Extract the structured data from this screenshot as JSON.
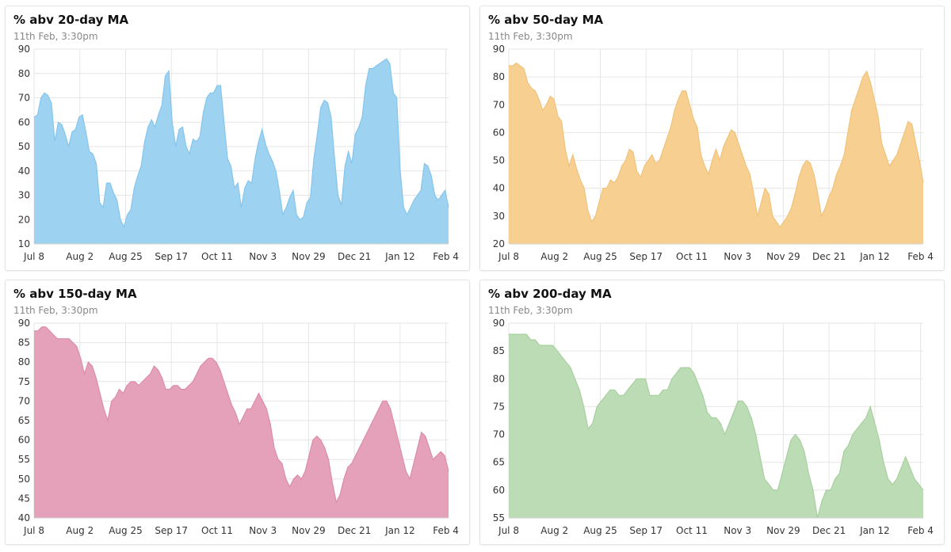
{
  "chart_data": [
    {
      "type": "area",
      "title": "% abv 20-day MA",
      "subtitle": "11th Feb, 3:30pm",
      "color": "#9dd2f1",
      "line_color": "#86c5ec",
      "ylim": [
        10,
        90
      ],
      "yticks": [
        10,
        20,
        30,
        40,
        50,
        60,
        70,
        80,
        90
      ],
      "xticks": [
        "Jul 8",
        "Aug 2",
        "Aug 25",
        "Sep 17",
        "Oct 11",
        "Nov 3",
        "Nov 29",
        "Dec 21",
        "Jan 12",
        "Feb 4"
      ],
      "x_range": [
        0,
        154
      ],
      "values": [
        62,
        63,
        70,
        72,
        71,
        68,
        52,
        60,
        59,
        55,
        50,
        56,
        57,
        62,
        63,
        56,
        48,
        47,
        43,
        27,
        25,
        35,
        35,
        31,
        28,
        20,
        17,
        22,
        24,
        33,
        38,
        42,
        52,
        58,
        61,
        58,
        63,
        67,
        79,
        81,
        60,
        50,
        57,
        58,
        50,
        47,
        53,
        52,
        54,
        64,
        70,
        72,
        72,
        75,
        75,
        60,
        45,
        42,
        33,
        35,
        25,
        33,
        36,
        35,
        45,
        52,
        57,
        51,
        47,
        44,
        40,
        32,
        22,
        25,
        29,
        32,
        22,
        20,
        21,
        27,
        29,
        45,
        55,
        66,
        69,
        68,
        62,
        45,
        30,
        26,
        42,
        48,
        43,
        55,
        58,
        62,
        75,
        82,
        82,
        83,
        84,
        85,
        86,
        84,
        72,
        70,
        40,
        25,
        22,
        25,
        28,
        30,
        32,
        43,
        42,
        38,
        30,
        28,
        30,
        32,
        25
      ]
    },
    {
      "type": "area",
      "title": "% abv 50-day MA",
      "subtitle": "11th Feb, 3:30pm",
      "color": "#f7d091",
      "line_color": "#f0c27a",
      "ylim": [
        20,
        90
      ],
      "yticks": [
        20,
        30,
        40,
        50,
        60,
        70,
        80,
        90
      ],
      "xticks": [
        "Jul 8",
        "Aug 2",
        "Aug 25",
        "Sep 17",
        "Oct 11",
        "Nov 3",
        "Nov 29",
        "Dec 21",
        "Jan 12",
        "Feb 4"
      ],
      "x_range": [
        0,
        154
      ],
      "values": [
        84,
        84,
        85,
        84,
        83,
        78,
        76,
        75,
        72,
        68,
        70,
        73,
        72,
        66,
        64,
        54,
        48,
        52,
        47,
        43,
        40,
        32,
        28,
        30,
        35,
        40,
        40,
        43,
        42,
        44,
        48,
        50,
        54,
        53,
        46,
        44,
        48,
        50,
        52,
        49,
        50,
        54,
        58,
        62,
        68,
        72,
        75,
        75,
        70,
        65,
        62,
        52,
        48,
        45,
        50,
        54,
        50,
        55,
        58,
        61,
        60,
        56,
        52,
        48,
        45,
        38,
        30,
        35,
        40,
        38,
        30,
        28,
        26,
        28,
        30,
        33,
        38,
        44,
        48,
        50,
        49,
        45,
        38,
        30,
        33,
        37,
        40,
        45,
        48,
        52,
        60,
        68,
        72,
        76,
        80,
        82,
        78,
        72,
        66,
        56,
        52,
        48,
        50,
        52,
        56,
        60,
        64,
        63,
        56,
        50,
        42
      ]
    },
    {
      "type": "area",
      "title": "% abv 150-day MA",
      "subtitle": "11th Feb, 3:30pm",
      "color": "#e5a1b9",
      "line_color": "#dc8ca9",
      "ylim": [
        40,
        90
      ],
      "yticks": [
        40,
        45,
        50,
        55,
        60,
        65,
        70,
        75,
        80,
        85,
        90
      ],
      "xticks": [
        "Jul 8",
        "Aug 2",
        "Aug 25",
        "Sep 17",
        "Oct 11",
        "Nov 3",
        "Nov 29",
        "Dec 21",
        "Jan 12",
        "Feb 4"
      ],
      "x_range": [
        0,
        154
      ],
      "values": [
        88,
        88,
        89,
        89,
        88,
        87,
        86,
        86,
        86,
        86,
        85,
        84,
        81,
        77,
        80,
        79,
        76,
        72,
        68,
        65,
        70,
        71,
        73,
        72,
        74,
        75,
        75,
        74,
        75,
        76,
        77,
        79,
        78,
        76,
        73,
        73,
        74,
        74,
        73,
        73,
        74,
        75,
        77,
        79,
        80,
        81,
        81,
        80,
        78,
        75,
        72,
        69,
        67,
        64,
        66,
        68,
        68,
        70,
        72,
        70,
        68,
        64,
        58,
        55,
        54,
        50,
        48,
        50,
        51,
        50,
        52,
        56,
        60,
        61,
        60,
        58,
        55,
        49,
        44,
        46,
        50,
        53,
        54,
        56,
        58,
        60,
        62,
        64,
        66,
        68,
        70,
        70,
        68,
        64,
        60,
        56,
        52,
        50,
        54,
        58,
        62,
        61,
        58,
        55,
        56,
        57,
        56,
        52
      ]
    },
    {
      "type": "area",
      "title": "% abv 200-day MA",
      "subtitle": "11th Feb, 3:30pm",
      "color": "#bcdcb5",
      "line_color": "#a7cf9e",
      "ylim": [
        55,
        90
      ],
      "yticks": [
        55,
        60,
        65,
        70,
        75,
        80,
        85,
        90
      ],
      "xticks": [
        "Jul 8",
        "Aug 2",
        "Aug 25",
        "Sep 17",
        "Oct 11",
        "Nov 3",
        "Nov 29",
        "Dec 21",
        "Jan 12",
        "Feb 4"
      ],
      "x_range": [
        0,
        154
      ],
      "values": [
        88,
        88,
        88,
        88,
        88,
        87,
        87,
        86,
        86,
        86,
        86,
        85,
        84,
        83,
        82,
        80,
        78,
        75,
        71,
        72,
        75,
        76,
        77,
        78,
        78,
        77,
        77,
        78,
        79,
        80,
        80,
        80,
        77,
        77,
        77,
        78,
        78,
        80,
        81,
        82,
        82,
        82,
        81,
        79,
        77,
        74,
        73,
        73,
        72,
        70,
        72,
        74,
        76,
        76,
        75,
        73,
        70,
        66,
        62,
        61,
        60,
        60,
        63,
        66,
        69,
        70,
        69,
        67,
        63,
        60,
        55,
        58,
        60,
        60,
        62,
        63,
        67,
        68,
        70,
        71,
        72,
        73,
        75,
        72,
        69,
        65,
        62,
        61,
        62,
        64,
        66,
        64,
        62,
        61,
        60
      ]
    }
  ]
}
